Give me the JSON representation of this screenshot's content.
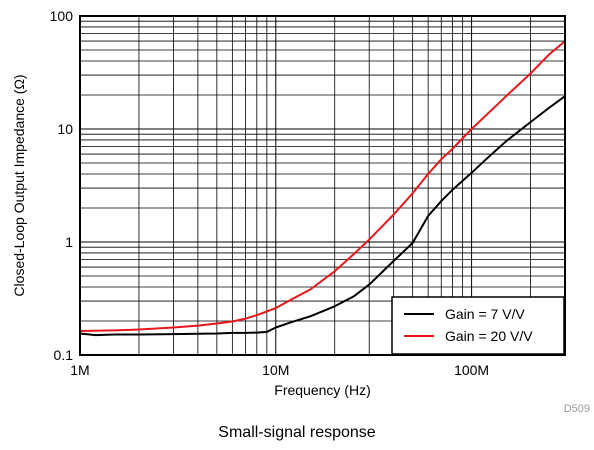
{
  "chart_data": {
    "type": "line",
    "title": "",
    "xlabel": "Frequency (Hz)",
    "ylabel": "Closed-Loop Output Impedance (Ω)",
    "xscale": "log",
    "yscale": "log",
    "xlim": [
      1000000,
      300000000
    ],
    "ylim": [
      0.1,
      100
    ],
    "grid": true,
    "legend_position": "bottom-right",
    "x_tick_labels": [
      {
        "value": 1000000,
        "label": "1M"
      },
      {
        "value": 10000000,
        "label": "10M"
      },
      {
        "value": 100000000,
        "label": "100M"
      }
    ],
    "y_tick_labels": [
      {
        "value": 0.1,
        "label": "0.1"
      },
      {
        "value": 1,
        "label": "1"
      },
      {
        "value": 10,
        "label": "10"
      },
      {
        "value": 100,
        "label": "100"
      }
    ],
    "series": [
      {
        "name": "Gain = 7 V/V",
        "color": "#000000",
        "points": [
          [
            1000000,
            0.155
          ],
          [
            1200000,
            0.15
          ],
          [
            1500000,
            0.152
          ],
          [
            2000000,
            0.152
          ],
          [
            3000000,
            0.153
          ],
          [
            4000000,
            0.154
          ],
          [
            5000000,
            0.155
          ],
          [
            6000000,
            0.157
          ],
          [
            7000000,
            0.157
          ],
          [
            8000000,
            0.158
          ],
          [
            9000000,
            0.16
          ],
          [
            10000000,
            0.175
          ],
          [
            12000000,
            0.195
          ],
          [
            15000000,
            0.22
          ],
          [
            20000000,
            0.27
          ],
          [
            25000000,
            0.33
          ],
          [
            30000000,
            0.42
          ],
          [
            40000000,
            0.68
          ],
          [
            50000000,
            0.98
          ],
          [
            60000000,
            1.7
          ],
          [
            70000000,
            2.3
          ],
          [
            80000000,
            2.9
          ],
          [
            100000000,
            4.1
          ],
          [
            120000000,
            5.5
          ],
          [
            150000000,
            7.8
          ],
          [
            200000000,
            11.5
          ],
          [
            250000000,
            15.5
          ],
          [
            300000000,
            19.5
          ]
        ]
      },
      {
        "name": "Gain = 20 V/V",
        "color": "#e8161b",
        "points": [
          [
            1000000,
            0.163
          ],
          [
            1500000,
            0.165
          ],
          [
            2000000,
            0.168
          ],
          [
            3000000,
            0.175
          ],
          [
            4000000,
            0.182
          ],
          [
            5000000,
            0.19
          ],
          [
            6000000,
            0.198
          ],
          [
            7000000,
            0.21
          ],
          [
            8000000,
            0.225
          ],
          [
            10000000,
            0.26
          ],
          [
            12000000,
            0.31
          ],
          [
            15000000,
            0.38
          ],
          [
            20000000,
            0.55
          ],
          [
            25000000,
            0.78
          ],
          [
            30000000,
            1.05
          ],
          [
            40000000,
            1.75
          ],
          [
            50000000,
            2.7
          ],
          [
            60000000,
            4.0
          ],
          [
            70000000,
            5.4
          ],
          [
            80000000,
            6.7
          ],
          [
            100000000,
            10.0
          ],
          [
            120000000,
            13.5
          ],
          [
            150000000,
            19.5
          ],
          [
            200000000,
            31
          ],
          [
            250000000,
            46
          ],
          [
            300000000,
            60
          ]
        ]
      }
    ]
  },
  "figure_code": "D509",
  "caption": "Small-signal response"
}
